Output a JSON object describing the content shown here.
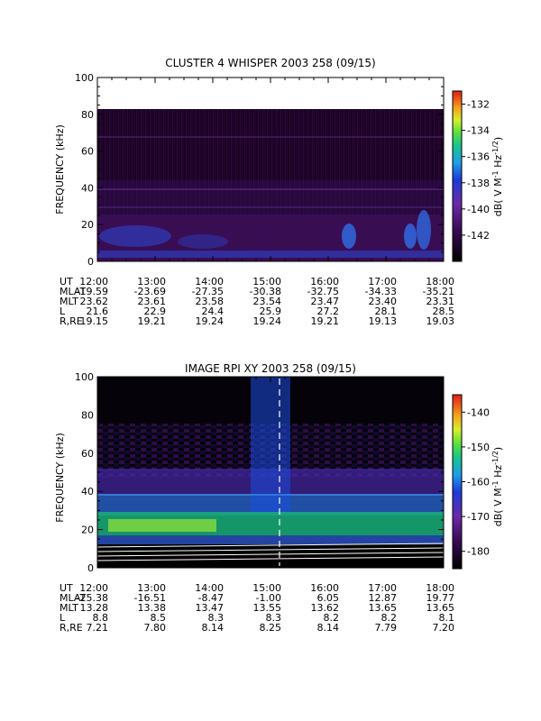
{
  "chart_data": [
    {
      "type": "heatmap",
      "title": "CLUSTER 4 WHISPER 2003 258 (09/15)",
      "ylabel": "FREQUENCY (kHz)",
      "ylim": [
        0,
        100
      ],
      "yticks": [
        "0",
        "20",
        "40",
        "60",
        "80",
        "100"
      ],
      "xticks": [
        "12:00",
        "13:00",
        "14:00",
        "15:00",
        "16:00",
        "17:00",
        "18:00"
      ],
      "colorbar": {
        "label": "dB( V M⁻¹ Hz⁻¹ᐟ²)",
        "label_text": "dB( V M",
        "label_sup1": "-1",
        "label_mid": "Hz",
        "label_sup2": "-1/2",
        "label_end": ")",
        "range": [
          -144,
          -131
        ],
        "ticks": [
          "-132",
          "-134",
          "-136",
          "-138",
          "-140",
          "-142"
        ]
      },
      "ephemeris": {
        "rows": [
          {
            "label": "UT",
            "values": [
              "12:00",
              "13:00",
              "14:00",
              "15:00",
              "16:00",
              "17:00",
              "18:00"
            ]
          },
          {
            "label": "MLAT",
            "values": [
              "-19.59",
              "-23.69",
              "-27.35",
              "-30.38",
              "-32.75",
              "-34.33",
              "-35.21"
            ]
          },
          {
            "label": "MLT",
            "values": [
              "23.62",
              "23.61",
              "23.58",
              "23.54",
              "23.47",
              "23.40",
              "23.31"
            ]
          },
          {
            "label": "L",
            "values": [
              "21.6",
              "22.9",
              "24.4",
              "25.9",
              "27.2",
              "28.1",
              "28.5"
            ]
          },
          {
            "label": "R,RE",
            "values": [
              "19.15",
              "19.21",
              "19.24",
              "19.24",
              "19.21",
              "19.13",
              "19.03"
            ]
          }
        ]
      }
    },
    {
      "type": "heatmap",
      "title": "IMAGE RPI XY 2003 258 (09/15)",
      "ylabel": "FREQUENCY (kHz)",
      "ylim": [
        0,
        100
      ],
      "yticks": [
        "0",
        "20",
        "40",
        "60",
        "80",
        "100"
      ],
      "xticks": [
        "12:00",
        "13:00",
        "14:00",
        "15:00",
        "16:00",
        "17:00",
        "18:00"
      ],
      "colorbar": {
        "label_text": "dB( V M",
        "label_sup1": "-1",
        "label_mid": "Hz",
        "label_sup2": "-1/2",
        "label_end": ")",
        "range": [
          -185,
          -135
        ],
        "ticks": [
          "-140",
          "-150",
          "-160",
          "-170",
          "-180"
        ]
      },
      "ephemeris": {
        "rows": [
          {
            "label": "UT",
            "values": [
              "12:00",
              "13:00",
              "14:00",
              "15:00",
              "16:00",
              "17:00",
              "18:00"
            ]
          },
          {
            "label": "MLAT",
            "values": [
              "-25.38",
              "-16.51",
              "-8.47",
              "-1.00",
              "6.05",
              "12.87",
              "19.77"
            ]
          },
          {
            "label": "MLT",
            "values": [
              "13.28",
              "13.38",
              "13.47",
              "13.55",
              "13.62",
              "13.65",
              "13.65"
            ]
          },
          {
            "label": "L",
            "values": [
              "8.8",
              "8.5",
              "8.3",
              "8.3",
              "8.2",
              "8.2",
              "8.1"
            ]
          },
          {
            "label": "R,RE",
            "values": [
              "7.21",
              "7.80",
              "8.14",
              "8.25",
              "8.14",
              "7.79",
              "7.20"
            ]
          }
        ]
      }
    }
  ],
  "colors": {
    "background": "#ffffff",
    "upper_panel_fill": "#1c0322",
    "upper_panel_band": "#3d0f59",
    "lower_panel_fill": "#06020a",
    "dashed_marker": "#ffffff"
  }
}
